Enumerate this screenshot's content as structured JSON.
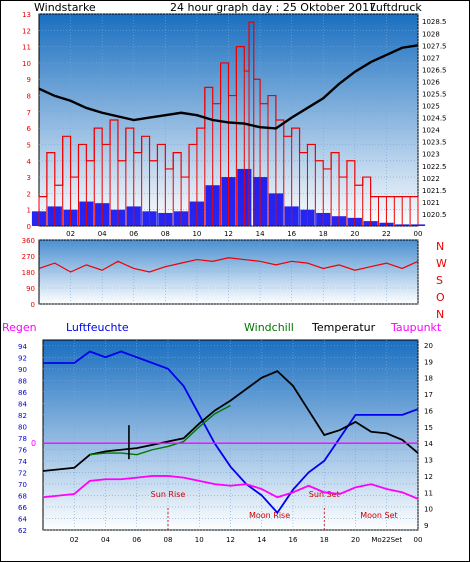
{
  "title": "24 hour graph day : 25 Oktober 2017",
  "colors": {
    "red": "#ee0000",
    "blue": "#0000ee",
    "black": "#000000",
    "green": "#007700",
    "magenta": "#ff00ff",
    "axis_blue": "#0000cc",
    "sky_top": "#1a6fc0",
    "sky_bottom": "#ffffff"
  },
  "chart_data": [
    {
      "type": "line",
      "name": "wind-pressure",
      "left_label": "Windstarke",
      "right_label": "Luftdruck",
      "x_tick_labels": [
        "02",
        "04",
        "06",
        "08",
        "10",
        "12",
        "14",
        "16",
        "18",
        "20",
        "22",
        "00"
      ],
      "y_left_ticks": [
        "0",
        "1",
        "2",
        "3",
        "4",
        "5",
        "6",
        "7",
        "8",
        "9",
        "10",
        "11",
        "12",
        "13"
      ],
      "y_right_ticks": [
        "1020.5",
        "1021",
        "1021.5",
        "1022",
        "1022.5",
        "1023",
        "1023.5",
        "1024",
        "1024.5",
        "1025",
        "1025.5",
        "1026",
        "1026.5",
        "1027",
        "1027.5",
        "1028",
        "1028.5"
      ],
      "y_left_range": [
        0,
        13
      ],
      "y_right_range": [
        1020,
        1028.8
      ],
      "wind_gust": [
        {
          "x": 0.0,
          "y": 1.8
        },
        {
          "x": 0.5,
          "y": 4.5
        },
        {
          "x": 1.0,
          "y": 2.5
        },
        {
          "x": 1.5,
          "y": 5.5
        },
        {
          "x": 2.0,
          "y": 3.0
        },
        {
          "x": 2.5,
          "y": 5.0
        },
        {
          "x": 3.0,
          "y": 4.0
        },
        {
          "x": 3.5,
          "y": 6.0
        },
        {
          "x": 4.0,
          "y": 5.0
        },
        {
          "x": 4.5,
          "y": 6.5
        },
        {
          "x": 5.0,
          "y": 4.0
        },
        {
          "x": 5.5,
          "y": 6.0
        },
        {
          "x": 6.0,
          "y": 4.5
        },
        {
          "x": 6.5,
          "y": 5.5
        },
        {
          "x": 7.0,
          "y": 4.0
        },
        {
          "x": 7.5,
          "y": 5.0
        },
        {
          "x": 8.0,
          "y": 3.5
        },
        {
          "x": 8.5,
          "y": 4.5
        },
        {
          "x": 9.0,
          "y": 3.0
        },
        {
          "x": 9.5,
          "y": 5.0
        },
        {
          "x": 10.0,
          "y": 6.0
        },
        {
          "x": 10.5,
          "y": 8.5
        },
        {
          "x": 11.0,
          "y": 7.5
        },
        {
          "x": 11.5,
          "y": 10.0
        },
        {
          "x": 12.0,
          "y": 8.0
        },
        {
          "x": 12.5,
          "y": 11.0
        },
        {
          "x": 13.0,
          "y": 9.5
        },
        {
          "x": 13.3,
          "y": 12.5
        },
        {
          "x": 13.6,
          "y": 9.0
        },
        {
          "x": 14.0,
          "y": 7.5
        },
        {
          "x": 14.5,
          "y": 8.0
        },
        {
          "x": 15.0,
          "y": 6.5
        },
        {
          "x": 15.5,
          "y": 5.5
        },
        {
          "x": 16.0,
          "y": 6.0
        },
        {
          "x": 16.5,
          "y": 4.5
        },
        {
          "x": 17.0,
          "y": 5.0
        },
        {
          "x": 17.5,
          "y": 4.0
        },
        {
          "x": 18.0,
          "y": 3.5
        },
        {
          "x": 18.5,
          "y": 4.5
        },
        {
          "x": 19.0,
          "y": 3.0
        },
        {
          "x": 19.5,
          "y": 4.0
        },
        {
          "x": 20.0,
          "y": 2.5
        },
        {
          "x": 20.5,
          "y": 3.0
        },
        {
          "x": 21.0,
          "y": 1.8
        },
        {
          "x": 21.5,
          "y": 1.8
        },
        {
          "x": 22.0,
          "y": 1.8
        },
        {
          "x": 22.5,
          "y": 1.8
        },
        {
          "x": 23.0,
          "y": 1.8
        },
        {
          "x": 23.5,
          "y": 1.8
        },
        {
          "x": 24.0,
          "y": 1.8
        }
      ],
      "wind_avg": [
        {
          "x": 0.0,
          "y": 0.9
        },
        {
          "x": 1.0,
          "y": 1.2
        },
        {
          "x": 2.0,
          "y": 1.0
        },
        {
          "x": 3.0,
          "y": 1.5
        },
        {
          "x": 4.0,
          "y": 1.4
        },
        {
          "x": 5.0,
          "y": 1.0
        },
        {
          "x": 6.0,
          "y": 1.2
        },
        {
          "x": 7.0,
          "y": 0.9
        },
        {
          "x": 8.0,
          "y": 0.8
        },
        {
          "x": 9.0,
          "y": 0.9
        },
        {
          "x": 10.0,
          "y": 1.5
        },
        {
          "x": 11.0,
          "y": 2.5
        },
        {
          "x": 12.0,
          "y": 3.0
        },
        {
          "x": 13.0,
          "y": 3.5
        },
        {
          "x": 14.0,
          "y": 3.0
        },
        {
          "x": 15.0,
          "y": 2.0
        },
        {
          "x": 16.0,
          "y": 1.2
        },
        {
          "x": 17.0,
          "y": 1.0
        },
        {
          "x": 18.0,
          "y": 0.8
        },
        {
          "x": 19.0,
          "y": 0.6
        },
        {
          "x": 20.0,
          "y": 0.5
        },
        {
          "x": 21.0,
          "y": 0.3
        },
        {
          "x": 22.0,
          "y": 0.2
        },
        {
          "x": 23.0,
          "y": 0.1
        },
        {
          "x": 24.0,
          "y": 0.1
        }
      ],
      "pressure": [
        {
          "x": 0.0,
          "y": 1025.7
        },
        {
          "x": 1.0,
          "y": 1025.4
        },
        {
          "x": 2.0,
          "y": 1025.2
        },
        {
          "x": 3.0,
          "y": 1024.9
        },
        {
          "x": 4.0,
          "y": 1024.7
        },
        {
          "x": 5.0,
          "y": 1024.55
        },
        {
          "x": 6.0,
          "y": 1024.4
        },
        {
          "x": 7.0,
          "y": 1024.5
        },
        {
          "x": 8.0,
          "y": 1024.6
        },
        {
          "x": 9.0,
          "y": 1024.7
        },
        {
          "x": 10.0,
          "y": 1024.6
        },
        {
          "x": 11.0,
          "y": 1024.4
        },
        {
          "x": 12.0,
          "y": 1024.3
        },
        {
          "x": 13.0,
          "y": 1024.25
        },
        {
          "x": 14.0,
          "y": 1024.1
        },
        {
          "x": 15.0,
          "y": 1024.05
        },
        {
          "x": 16.0,
          "y": 1024.5
        },
        {
          "x": 17.0,
          "y": 1024.9
        },
        {
          "x": 18.0,
          "y": 1025.3
        },
        {
          "x": 19.0,
          "y": 1025.9
        },
        {
          "x": 20.0,
          "y": 1026.4
        },
        {
          "x": 21.0,
          "y": 1026.8
        },
        {
          "x": 22.0,
          "y": 1027.1
        },
        {
          "x": 23.0,
          "y": 1027.4
        },
        {
          "x": 24.0,
          "y": 1027.5
        }
      ]
    },
    {
      "type": "line",
      "name": "wind-direction",
      "y_left_ticks": [
        "360",
        "270",
        "180",
        "90",
        "0"
      ],
      "right_labels": [
        "N",
        "W",
        "S",
        "O",
        "N"
      ],
      "y_range": [
        0,
        360
      ],
      "direction": [
        {
          "x": 0.0,
          "y": 200
        },
        {
          "x": 1.0,
          "y": 230
        },
        {
          "x": 2.0,
          "y": 180
        },
        {
          "x": 3.0,
          "y": 220
        },
        {
          "x": 4.0,
          "y": 190
        },
        {
          "x": 5.0,
          "y": 240
        },
        {
          "x": 6.0,
          "y": 200
        },
        {
          "x": 7.0,
          "y": 180
        },
        {
          "x": 8.0,
          "y": 210
        },
        {
          "x": 9.0,
          "y": 230
        },
        {
          "x": 10.0,
          "y": 250
        },
        {
          "x": 11.0,
          "y": 240
        },
        {
          "x": 12.0,
          "y": 260
        },
        {
          "x": 13.0,
          "y": 250
        },
        {
          "x": 14.0,
          "y": 240
        },
        {
          "x": 15.0,
          "y": 220
        },
        {
          "x": 16.0,
          "y": 240
        },
        {
          "x": 17.0,
          "y": 230
        },
        {
          "x": 18.0,
          "y": 200
        },
        {
          "x": 19.0,
          "y": 220
        },
        {
          "x": 20.0,
          "y": 190
        },
        {
          "x": 21.0,
          "y": 210
        },
        {
          "x": 22.0,
          "y": 230
        },
        {
          "x": 23.0,
          "y": 200
        },
        {
          "x": 24.0,
          "y": 240
        }
      ]
    },
    {
      "type": "line",
      "name": "temperature-humidity",
      "labels": {
        "regen": "Regen",
        "luftfeuchte": "Luftfeuchte",
        "windchill": "Windchill",
        "temperatur": "Temperatur",
        "taupunkt": "Taupunkt"
      },
      "x_tick_labels": [
        "02",
        "04",
        "06",
        "08",
        "10",
        "12",
        "14",
        "16",
        "18",
        "20",
        "Mo22Set",
        "00"
      ],
      "y_left_ticks": [
        "62",
        "64",
        "66",
        "68",
        "70",
        "72",
        "74",
        "76",
        "78",
        "80",
        "82",
        "84",
        "86",
        "88",
        "90",
        "92",
        "94"
      ],
      "y_right_ticks": [
        "9",
        "10",
        "11",
        "12",
        "13",
        "14",
        "15",
        "16",
        "17",
        "18",
        "19",
        "20"
      ],
      "y_left_range": [
        62,
        95
      ],
      "y_right_range": [
        8.7,
        20.3
      ],
      "rain_zero_label": "0",
      "events": [
        {
          "label": "Sun Rise",
          "x": 8.0
        },
        {
          "label": "Moon Rise",
          "x": 14.5
        },
        {
          "label": "Sun Set",
          "x": 18.0
        },
        {
          "label": "Moon Set",
          "x": 21.5
        }
      ],
      "humidity": [
        {
          "x": 0.0,
          "y": 91
        },
        {
          "x": 1.0,
          "y": 91
        },
        {
          "x": 2.0,
          "y": 91
        },
        {
          "x": 3.0,
          "y": 93
        },
        {
          "x": 4.0,
          "y": 92
        },
        {
          "x": 5.0,
          "y": 93
        },
        {
          "x": 6.0,
          "y": 92
        },
        {
          "x": 7.0,
          "y": 91
        },
        {
          "x": 8.0,
          "y": 90
        },
        {
          "x": 9.0,
          "y": 87
        },
        {
          "x": 10.0,
          "y": 82
        },
        {
          "x": 11.0,
          "y": 77
        },
        {
          "x": 12.0,
          "y": 73
        },
        {
          "x": 13.0,
          "y": 70
        },
        {
          "x": 14.0,
          "y": 68
        },
        {
          "x": 15.0,
          "y": 65
        },
        {
          "x": 16.0,
          "y": 69
        },
        {
          "x": 17.0,
          "y": 72
        },
        {
          "x": 18.0,
          "y": 74
        },
        {
          "x": 19.0,
          "y": 78
        },
        {
          "x": 20.0,
          "y": 82
        },
        {
          "x": 21.0,
          "y": 82
        },
        {
          "x": 22.0,
          "y": 82
        },
        {
          "x": 23.0,
          "y": 82
        },
        {
          "x": 24.0,
          "y": 83
        }
      ],
      "temperature": [
        {
          "x": 0.0,
          "y": 12.3
        },
        {
          "x": 1.0,
          "y": 12.4
        },
        {
          "x": 2.0,
          "y": 12.5
        },
        {
          "x": 3.0,
          "y": 13.3
        },
        {
          "x": 4.0,
          "y": 13.5
        },
        {
          "x": 5.0,
          "y": 13.6
        },
        {
          "x": 6.0,
          "y": 13.7
        },
        {
          "x": 7.0,
          "y": 13.9
        },
        {
          "x": 8.0,
          "y": 14.1
        },
        {
          "x": 9.0,
          "y": 14.3
        },
        {
          "x": 10.0,
          "y": 15.2
        },
        {
          "x": 11.0,
          "y": 16.0
        },
        {
          "x": 12.0,
          "y": 16.6
        },
        {
          "x": 13.0,
          "y": 17.3
        },
        {
          "x": 14.0,
          "y": 18.0
        },
        {
          "x": 15.0,
          "y": 18.4
        },
        {
          "x": 16.0,
          "y": 17.5
        },
        {
          "x": 17.0,
          "y": 16.0
        },
        {
          "x": 18.0,
          "y": 14.5
        },
        {
          "x": 19.0,
          "y": 14.8
        },
        {
          "x": 20.0,
          "y": 15.3
        },
        {
          "x": 21.0,
          "y": 14.7
        },
        {
          "x": 22.0,
          "y": 14.6
        },
        {
          "x": 23.0,
          "y": 14.2
        },
        {
          "x": 24.0,
          "y": 13.4
        }
      ],
      "windchill": [
        {
          "x": 3.0,
          "y": 13.3
        },
        {
          "x": 4.0,
          "y": 13.4
        },
        {
          "x": 5.0,
          "y": 13.4
        },
        {
          "x": 6.0,
          "y": 13.3
        },
        {
          "x": 7.0,
          "y": 13.6
        },
        {
          "x": 8.0,
          "y": 13.8
        },
        {
          "x": 9.0,
          "y": 14.1
        },
        {
          "x": 10.0,
          "y": 15.0
        },
        {
          "x": 11.0,
          "y": 15.8
        },
        {
          "x": 12.0,
          "y": 16.3
        }
      ],
      "dewpoint": [
        {
          "x": 0.0,
          "y": 10.7
        },
        {
          "x": 1.0,
          "y": 10.8
        },
        {
          "x": 2.0,
          "y": 10.9
        },
        {
          "x": 3.0,
          "y": 11.7
        },
        {
          "x": 4.0,
          "y": 11.8
        },
        {
          "x": 5.0,
          "y": 11.8
        },
        {
          "x": 6.0,
          "y": 11.9
        },
        {
          "x": 7.0,
          "y": 12.0
        },
        {
          "x": 8.0,
          "y": 12.0
        },
        {
          "x": 9.0,
          "y": 11.9
        },
        {
          "x": 10.0,
          "y": 11.7
        },
        {
          "x": 11.0,
          "y": 11.5
        },
        {
          "x": 12.0,
          "y": 11.4
        },
        {
          "x": 13.0,
          "y": 11.5
        },
        {
          "x": 14.0,
          "y": 11.2
        },
        {
          "x": 15.0,
          "y": 10.7
        },
        {
          "x": 16.0,
          "y": 11.0
        },
        {
          "x": 17.0,
          "y": 11.4
        },
        {
          "x": 18.0,
          "y": 11.0
        },
        {
          "x": 19.0,
          "y": 10.9
        },
        {
          "x": 20.0,
          "y": 11.3
        },
        {
          "x": 21.0,
          "y": 11.5
        },
        {
          "x": 22.0,
          "y": 11.2
        },
        {
          "x": 23.0,
          "y": 11.0
        },
        {
          "x": 24.0,
          "y": 10.6
        }
      ],
      "rain": [
        {
          "x": 5.5,
          "y": 2.0
        }
      ]
    }
  ]
}
